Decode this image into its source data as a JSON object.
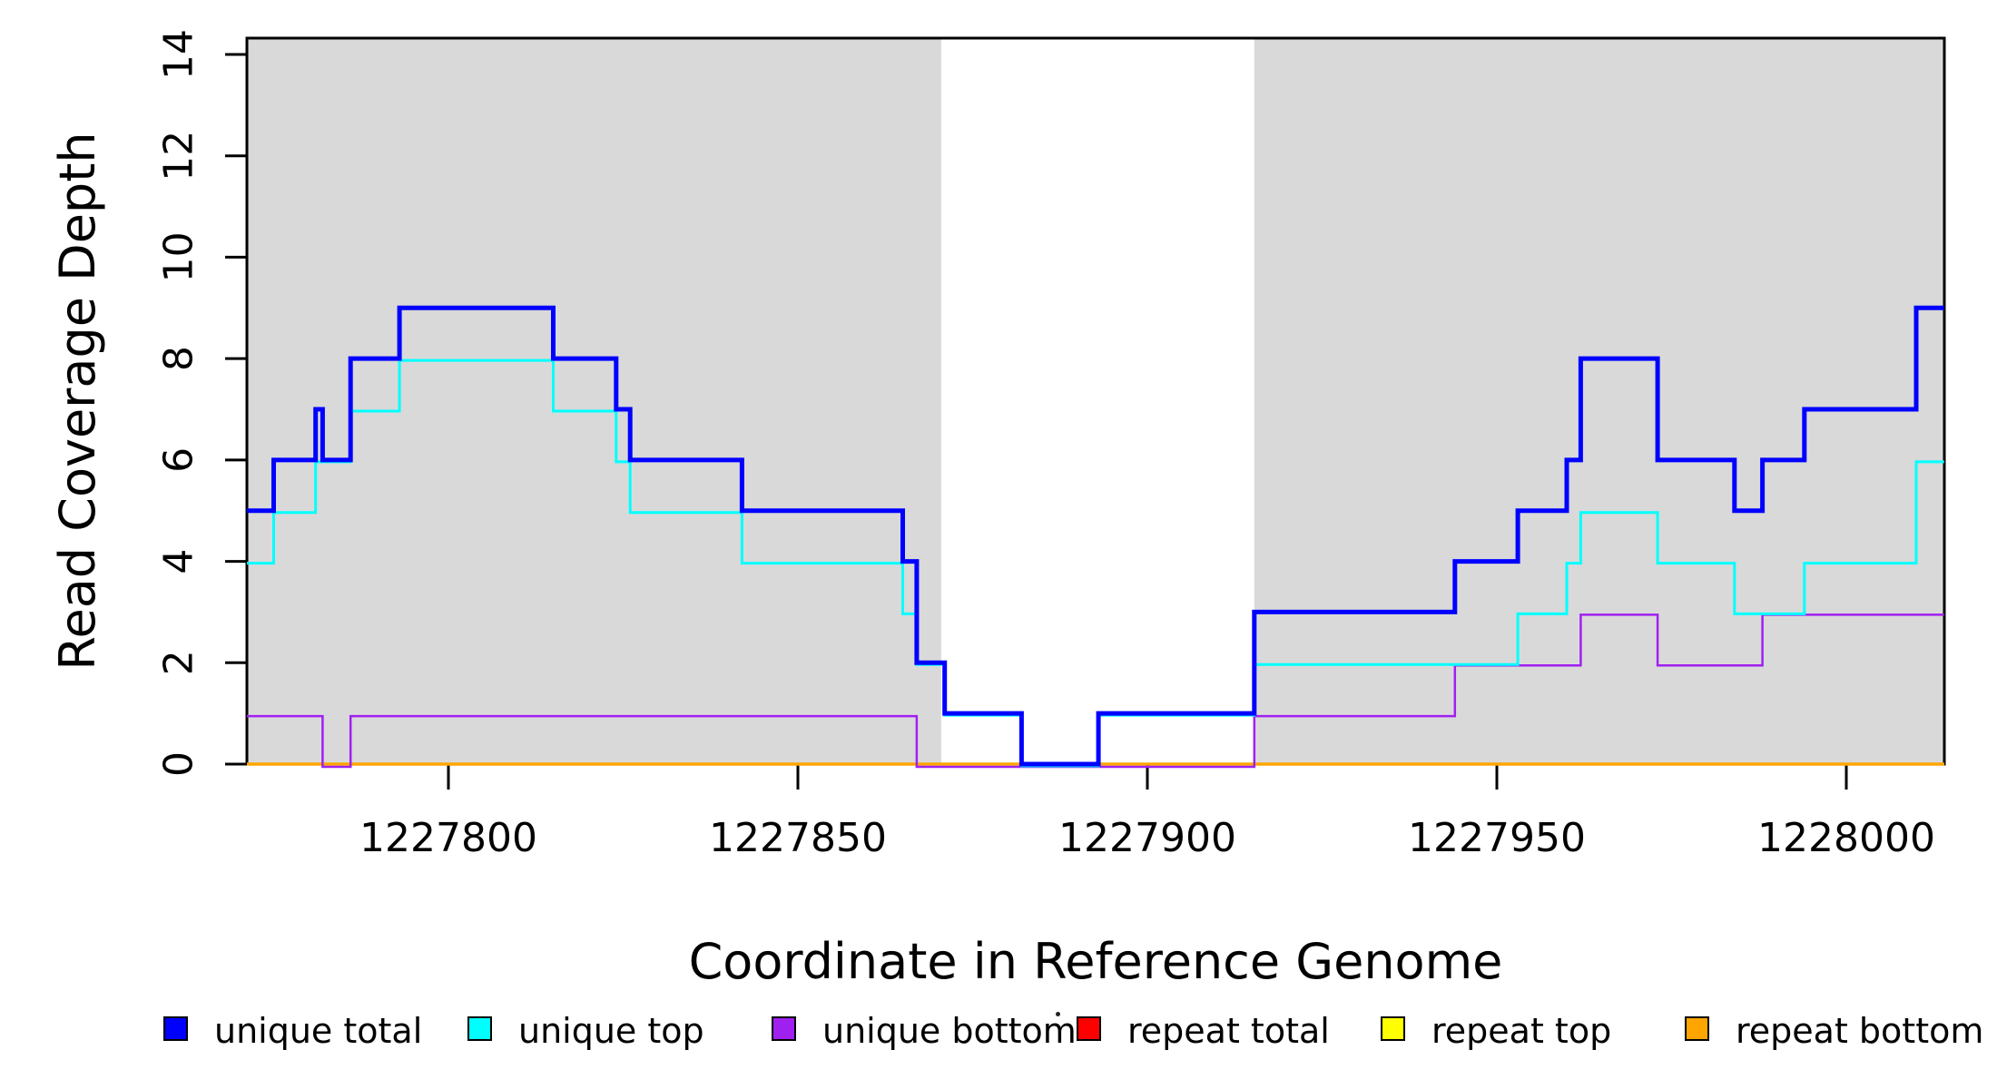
{
  "figure": {
    "background": "#FFFFFF"
  },
  "chart_data": {
    "type": "line",
    "subtype": "step-coverage",
    "title": "",
    "xlabel": "Coordinate in Reference Genome",
    "ylabel": "Read Coverage Depth",
    "xlim": [
      1227771,
      1228014
    ],
    "ylim": [
      0,
      14.3
    ],
    "grid": false,
    "x_ticks": [
      1227800,
      1227850,
      1227900,
      1227950,
      1228000
    ],
    "x_tick_labels": [
      "1227800",
      "1227850",
      "1227900",
      "1227950",
      "1228000"
    ],
    "y_ticks": [
      0,
      2,
      4,
      6,
      8,
      10,
      12,
      14
    ],
    "y_tick_labels": [
      "0",
      "2",
      "4",
      "6",
      "8",
      "10",
      "12",
      "14"
    ],
    "shade_color": "#D9D9D9",
    "shaded_regions": [
      {
        "start": 1227771,
        "end": 1227870.5
      },
      {
        "start": 1227915.3,
        "end": 1228014
      }
    ],
    "series": [
      {
        "name": "repeat total",
        "color": "#FF0000",
        "width": 2.5,
        "offset": 0,
        "end": 1228014,
        "points": [
          [
            1227771,
            0
          ]
        ]
      },
      {
        "name": "repeat top",
        "color": "#FFFF00",
        "width": 2.5,
        "offset": 0,
        "end": 1228014,
        "points": [
          [
            1227771,
            0
          ]
        ]
      },
      {
        "name": "repeat bottom",
        "color": "#FFA500",
        "width": 3.5,
        "offset": 0,
        "end": 1228014,
        "points": [
          [
            1227771,
            0
          ]
        ]
      },
      {
        "name": "unique bottom",
        "color": "#A020F0",
        "width": 2.5,
        "offset": 3,
        "end": 1228014,
        "points": [
          [
            1227771,
            1
          ],
          [
            1227782,
            0
          ],
          [
            1227786,
            1
          ],
          [
            1227867,
            0
          ],
          [
            1227915.3,
            1
          ],
          [
            1227944,
            2
          ],
          [
            1227962,
            3
          ],
          [
            1227973,
            2
          ],
          [
            1227988,
            3
          ]
        ]
      },
      {
        "name": "unique top",
        "color": "#00FFFF",
        "width": 3,
        "offset": 2,
        "end": 1228014,
        "points": [
          [
            1227771,
            4
          ],
          [
            1227775,
            5
          ],
          [
            1227781,
            6
          ],
          [
            1227786,
            7
          ],
          [
            1227793,
            8
          ],
          [
            1227815,
            7
          ],
          [
            1227824,
            6
          ],
          [
            1227826,
            5
          ],
          [
            1227842,
            4
          ],
          [
            1227865,
            3
          ],
          [
            1227867,
            2
          ],
          [
            1227871,
            1
          ],
          [
            1227882,
            0
          ],
          [
            1227893,
            1
          ],
          [
            1227915.3,
            2
          ],
          [
            1227953,
            3
          ],
          [
            1227960,
            4
          ],
          [
            1227962,
            5
          ],
          [
            1227973,
            4
          ],
          [
            1227984,
            3
          ],
          [
            1227994,
            4
          ],
          [
            1228010,
            6
          ]
        ]
      },
      {
        "name": "unique total",
        "color": "#0000FF",
        "width": 5,
        "offset": 0,
        "end": 1228014,
        "points": [
          [
            1227771,
            5
          ],
          [
            1227775,
            6
          ],
          [
            1227781,
            7
          ],
          [
            1227782,
            6
          ],
          [
            1227786,
            8
          ],
          [
            1227793,
            9
          ],
          [
            1227815,
            8
          ],
          [
            1227824,
            7
          ],
          [
            1227826,
            6
          ],
          [
            1227842,
            5
          ],
          [
            1227865,
            4
          ],
          [
            1227867,
            2
          ],
          [
            1227871,
            1
          ],
          [
            1227882,
            0
          ],
          [
            1227893,
            1
          ],
          [
            1227915.3,
            3
          ],
          [
            1227944,
            4
          ],
          [
            1227953,
            5
          ],
          [
            1227960,
            6
          ],
          [
            1227962,
            8
          ],
          [
            1227973,
            6
          ],
          [
            1227984,
            5
          ],
          [
            1227988,
            6
          ],
          [
            1227994,
            7
          ],
          [
            1228010,
            9
          ]
        ]
      }
    ],
    "legend_position": "bottom",
    "legend": [
      {
        "label": "unique total",
        "color": "#0000FF"
      },
      {
        "label": "unique top",
        "color": "#00FFFF"
      },
      {
        "label": "unique bottom",
        "color": "#A020F0"
      },
      {
        "label": "repeat total",
        "color": "#FF0000"
      },
      {
        "label": "repeat top",
        "color": "#FFFF00"
      },
      {
        "label": "repeat bottom",
        "color": "#FFA500"
      }
    ],
    "legend_stray_dot": true
  }
}
